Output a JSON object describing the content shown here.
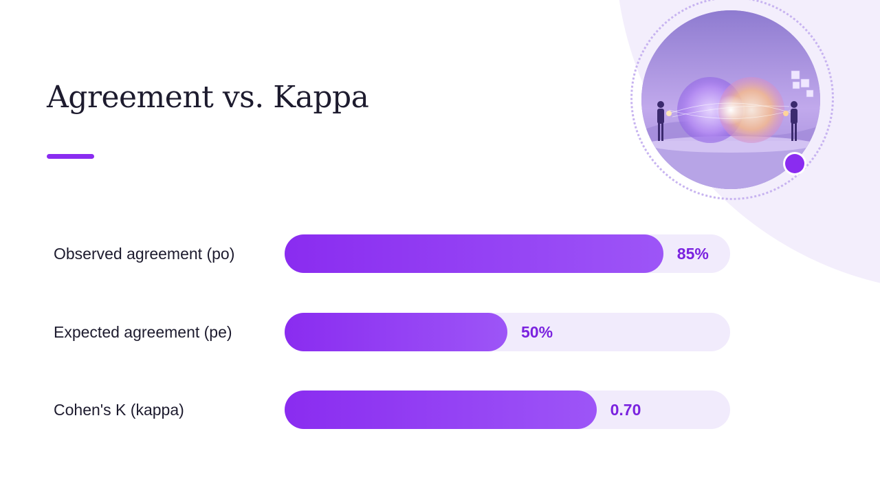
{
  "slide": {
    "title": "Agreement vs. Kappa"
  },
  "illustration": {
    "icon": "two-people-overlapping-spheres-illustration"
  },
  "chart_data": {
    "type": "bar",
    "orientation": "horizontal",
    "title": "Agreement vs. Kappa",
    "categories": [
      "Observed agreement (po)",
      "Expected agreement (pe)",
      "Cohen's K (kappa)"
    ],
    "values": [
      0.85,
      0.5,
      0.7
    ],
    "value_labels": [
      "85%",
      "50%",
      "0.70"
    ],
    "xlim": [
      0,
      1
    ],
    "grid": false,
    "legend": "none"
  },
  "colors": {
    "accent": "#8a2cf0",
    "accent_light": "#9d55f7",
    "track": "#f1ebfc",
    "value_text": "#7a22df",
    "text": "#1d1b2e",
    "background_arc": "#f3eefc"
  }
}
